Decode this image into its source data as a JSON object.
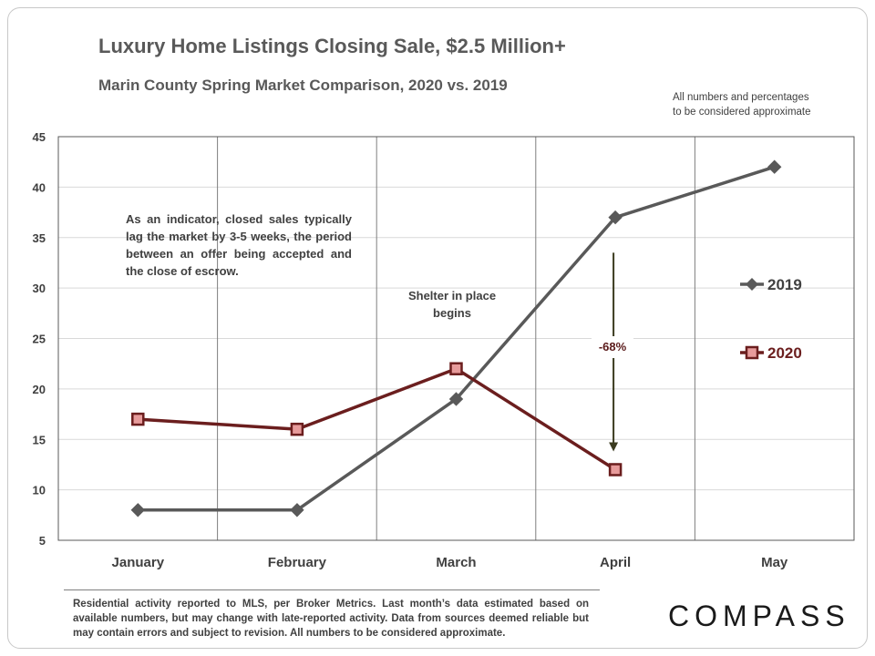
{
  "title": "Luxury Home Listings Closing Sale, $2.5 Million+",
  "subtitle": "Marin County Spring Market Comparison,  2020 vs. 2019",
  "note_top": "All numbers and percentages\nto be considered approximate",
  "annotation_left": "As an indicator, closed sales typically lag the market by 3-5 weeks, the period between an offer being accepted and the close of escrow.",
  "annotation_shelter": "Shelter in place begins",
  "change_label": "-68%",
  "footer": "Residential activity reported to MLS, per Broker Metrics. Last month’s data estimated based on available numbers, but may change with late-reported activity. Data from sources deemed reliable but may contain errors and subject to revision. All numbers to be considered approximate.",
  "logo": "COMPASS",
  "colors": {
    "series_2019": "#595959",
    "series_2020": "#6b1e1e",
    "marker_2020_fill": "#e79b9b",
    "grid": "#d9d9d9",
    "axis": "#595959"
  },
  "chart_data": {
    "type": "line",
    "title": "Luxury Home Listings Closing Sale, $2.5 Million+",
    "subtitle": "Marin County Spring Market Comparison,  2020 vs. 2019",
    "categories": [
      "January",
      "February",
      "March",
      "April",
      "May"
    ],
    "yticks": [
      5,
      10,
      15,
      20,
      25,
      30,
      35,
      40,
      45
    ],
    "ylim": [
      5,
      45
    ],
    "xlabel": "",
    "ylabel": "",
    "legend_position": "right",
    "series": [
      {
        "name": "2019",
        "values": [
          8,
          8,
          19,
          37,
          42
        ],
        "marker": "diamond"
      },
      {
        "name": "2020",
        "values": [
          17,
          16,
          22,
          12,
          null
        ],
        "marker": "square"
      }
    ],
    "annotations": [
      {
        "text": "-68%",
        "category": "April",
        "from": 37,
        "to": 12
      }
    ]
  }
}
